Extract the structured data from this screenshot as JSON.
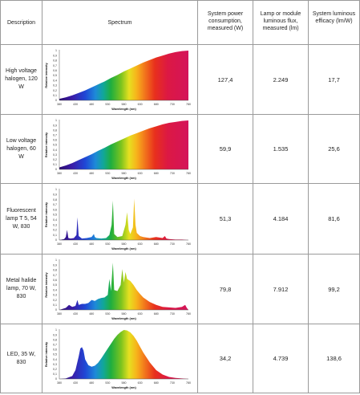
{
  "table": {
    "headers": {
      "description": "Description",
      "spectrum": "Spectrum",
      "power": "System power consumption, measured (W)",
      "flux": "Lamp or module luminous flux, measured (lm)",
      "efficacy": "System luminous efficacy (lm/W)"
    },
    "rows": [
      {
        "description": "High voltage halogen, 120 W",
        "power": "127,4",
        "flux": "2.249",
        "efficacy": "17,7"
      },
      {
        "description": "Low voltage halogen, 60 W",
        "power": "59,9",
        "flux": "1.535",
        "efficacy": "25,6"
      },
      {
        "description": "Fluorescent lamp T 5, 54 W, 830",
        "power": "51,3",
        "flux": "4.184",
        "efficacy": "81,6"
      },
      {
        "description": "Metal halide lamp, 70 W, 830",
        "power": "79,8",
        "flux": "7.912",
        "efficacy": "99,2"
      },
      {
        "description": "LED, 35 W, 830",
        "power": "34,2",
        "flux": "4.739",
        "efficacy": "138,6"
      }
    ]
  },
  "chart_data": [
    {
      "type": "area",
      "x": [
        380,
        400,
        420,
        440,
        460,
        480,
        500,
        520,
        540,
        560,
        580,
        600,
        620,
        640,
        660,
        680,
        700,
        720,
        740,
        760,
        780
      ],
      "values": [
        0.03,
        0.06,
        0.1,
        0.15,
        0.2,
        0.26,
        0.32,
        0.38,
        0.45,
        0.51,
        0.58,
        0.64,
        0.7,
        0.76,
        0.81,
        0.86,
        0.9,
        0.94,
        0.97,
        0.99,
        1.0
      ],
      "xlabel": "Wavelength (nm)",
      "ylabel": "Relative intensity",
      "xlim": [
        380,
        780
      ],
      "ylim": [
        0,
        1
      ],
      "xticks": [
        "380",
        "430",
        "480",
        "530",
        "580",
        "630",
        "680",
        "730",
        "780"
      ],
      "yticks": [
        "0",
        "0,1",
        "0,2",
        "0,3",
        "0,4",
        "0,5",
        "0,6",
        "0,7",
        "0,8",
        "0,9",
        "1"
      ]
    },
    {
      "type": "area",
      "x": [
        380,
        400,
        420,
        440,
        460,
        480,
        500,
        520,
        540,
        560,
        580,
        600,
        620,
        640,
        660,
        680,
        700,
        720,
        740,
        760,
        780
      ],
      "values": [
        0.04,
        0.08,
        0.13,
        0.19,
        0.25,
        0.31,
        0.38,
        0.44,
        0.51,
        0.57,
        0.63,
        0.69,
        0.74,
        0.79,
        0.84,
        0.88,
        0.92,
        0.95,
        0.97,
        0.99,
        1.0
      ],
      "xlabel": "Wavelength (nm)",
      "ylabel": "Relative intensity",
      "xlim": [
        380,
        780
      ],
      "ylim": [
        0,
        1
      ],
      "xticks": [
        "380",
        "430",
        "480",
        "530",
        "580",
        "630",
        "680",
        "730",
        "780"
      ],
      "yticks": [
        "0",
        "0,1",
        "0,2",
        "0,3",
        "0,4",
        "0,5",
        "0,6",
        "0,7",
        "0,8",
        "0,9",
        "1"
      ]
    },
    {
      "type": "area",
      "x": [
        380,
        395,
        400,
        404,
        408,
        415,
        425,
        433,
        436,
        440,
        450,
        465,
        480,
        487,
        490,
        495,
        510,
        525,
        535,
        542,
        546,
        550,
        560,
        575,
        585,
        590,
        595,
        600,
        608,
        612,
        616,
        620,
        630,
        640,
        650,
        660,
        680,
        700,
        707,
        712,
        720,
        740,
        760,
        780
      ],
      "values": [
        0,
        0.02,
        0.06,
        0.2,
        0.04,
        0.03,
        0.04,
        0.1,
        0.45,
        0.08,
        0.03,
        0.04,
        0.06,
        0.12,
        0.06,
        0.04,
        0.03,
        0.04,
        0.1,
        0.3,
        0.78,
        0.12,
        0.06,
        0.08,
        0.3,
        0.55,
        0.2,
        0.12,
        0.25,
        0.82,
        0.3,
        0.14,
        0.08,
        0.06,
        0.05,
        0.04,
        0.06,
        0.04,
        0.08,
        0.03,
        0.02,
        0.01,
        0.01,
        0.0
      ],
      "xlabel": "Wavelength (nm)",
      "ylabel": "Relative intensity",
      "xlim": [
        380,
        780
      ],
      "ylim": [
        0,
        1
      ],
      "xticks": [
        "380",
        "430",
        "480",
        "530",
        "580",
        "630",
        "680",
        "730",
        "780"
      ],
      "yticks": [
        "0",
        "0,1",
        "0,2",
        "0,3",
        "0,4",
        "0,5",
        "0,6",
        "0,7",
        "0,8",
        "0,9",
        "1"
      ]
    },
    {
      "type": "area",
      "x": [
        380,
        400,
        410,
        420,
        430,
        436,
        440,
        450,
        460,
        470,
        480,
        490,
        500,
        510,
        520,
        530,
        535,
        540,
        546,
        550,
        560,
        570,
        575,
        580,
        585,
        590,
        600,
        610,
        620,
        630,
        640,
        660,
        680,
        700,
        720,
        740,
        760,
        770,
        775,
        780
      ],
      "values": [
        0,
        0.04,
        0.1,
        0.06,
        0.08,
        0.2,
        0.1,
        0.12,
        0.12,
        0.14,
        0.2,
        0.18,
        0.22,
        0.24,
        0.25,
        0.3,
        0.62,
        0.38,
        0.95,
        0.4,
        0.38,
        0.5,
        0.82,
        0.55,
        0.76,
        0.62,
        0.58,
        0.5,
        0.4,
        0.32,
        0.25,
        0.16,
        0.1,
        0.06,
        0.05,
        0.04,
        0.06,
        0.1,
        0.04,
        0.0
      ],
      "xlabel": "Wavelength (nm)",
      "ylabel": "Relative intensity",
      "xlim": [
        380,
        780
      ],
      "ylim": [
        0,
        1
      ],
      "xticks": [
        "380",
        "430",
        "480",
        "530",
        "580",
        "630",
        "680",
        "730",
        "780"
      ],
      "yticks": [
        "0",
        "0,1",
        "0,2",
        "0,3",
        "0,4",
        "0,5",
        "0,6",
        "0,7",
        "0,8",
        "0,9",
        "1"
      ]
    },
    {
      "type": "area",
      "x": [
        380,
        400,
        420,
        430,
        440,
        445,
        450,
        455,
        460,
        470,
        480,
        490,
        500,
        510,
        520,
        530,
        540,
        550,
        560,
        570,
        580,
        590,
        600,
        610,
        620,
        630,
        640,
        660,
        680,
        700,
        720,
        740,
        760,
        780
      ],
      "values": [
        0,
        0.01,
        0.06,
        0.18,
        0.46,
        0.62,
        0.65,
        0.58,
        0.4,
        0.28,
        0.25,
        0.27,
        0.33,
        0.42,
        0.52,
        0.62,
        0.72,
        0.82,
        0.9,
        0.96,
        1.0,
        0.99,
        0.95,
        0.88,
        0.78,
        0.66,
        0.54,
        0.34,
        0.18,
        0.09,
        0.04,
        0.02,
        0.01,
        0.0
      ],
      "xlabel": "Wavelength (nm)",
      "ylabel": "Relative intensity",
      "xlim": [
        380,
        780
      ],
      "ylim": [
        0,
        1
      ],
      "xticks": [
        "380",
        "430",
        "480",
        "530",
        "580",
        "630",
        "680",
        "730",
        "780"
      ],
      "yticks": [
        "0",
        "0,1",
        "0,2",
        "0,3",
        "0,4",
        "0,5",
        "0,6",
        "0,7",
        "0,8",
        "0,9",
        "1"
      ]
    }
  ]
}
